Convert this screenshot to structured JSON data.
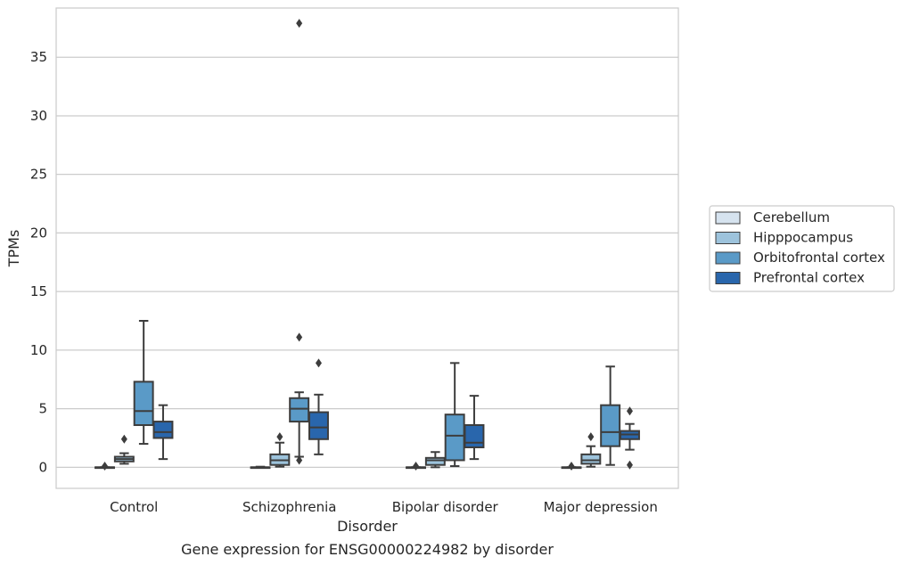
{
  "chart_data": {
    "type": "box",
    "title": "",
    "caption": "Gene expression for ENSG00000224982 by disorder",
    "xlabel": "Disorder",
    "ylabel": "TPMs",
    "ylim": [
      -1.8,
      39.2
    ],
    "yticks": [
      0,
      5,
      10,
      15,
      20,
      25,
      30,
      35
    ],
    "grid": "horizontal",
    "legend_position": "right",
    "categories": [
      "Control",
      "Schizophrenia",
      "Bipolar disorder",
      "Major depression"
    ],
    "series": [
      {
        "name": "Cerebellum",
        "color": "#d6e3ef",
        "boxes": [
          {
            "whisker_low": 0,
            "q1": 0,
            "median": 0,
            "q3": 0,
            "whisker_high": 0,
            "outliers": [
              0.1
            ]
          },
          {
            "whisker_low": 0,
            "q1": 0,
            "median": 0,
            "q3": 0,
            "whisker_high": 0.05,
            "outliers": []
          },
          {
            "whisker_low": 0,
            "q1": 0,
            "median": 0,
            "q3": 0,
            "whisker_high": 0,
            "outliers": [
              0.1
            ]
          },
          {
            "whisker_low": 0,
            "q1": 0,
            "median": 0,
            "q3": 0,
            "whisker_high": 0,
            "outliers": [
              0.1
            ]
          }
        ]
      },
      {
        "name": "Hipppocampus",
        "color": "#9dc3dc",
        "boxes": [
          {
            "whisker_low": 0.3,
            "q1": 0.5,
            "median": 0.7,
            "q3": 0.9,
            "whisker_high": 1.2,
            "outliers": [
              2.4
            ]
          },
          {
            "whisker_low": 0.05,
            "q1": 0.2,
            "median": 0.6,
            "q3": 1.1,
            "whisker_high": 2.1,
            "outliers": [
              2.6
            ]
          },
          {
            "whisker_low": 0,
            "q1": 0.2,
            "median": 0.6,
            "q3": 0.8,
            "whisker_high": 1.3,
            "outliers": []
          },
          {
            "whisker_low": 0.05,
            "q1": 0.3,
            "median": 0.6,
            "q3": 1.1,
            "whisker_high": 1.8,
            "outliers": [
              2.6
            ]
          }
        ]
      },
      {
        "name": "Orbitofrontal cortex",
        "color": "#5a9ac7",
        "boxes": [
          {
            "whisker_low": 2.0,
            "q1": 3.6,
            "median": 4.8,
            "q3": 7.3,
            "whisker_high": 12.5,
            "outliers": []
          },
          {
            "whisker_low": 0.9,
            "q1": 3.9,
            "median": 5.0,
            "q3": 5.9,
            "whisker_high": 6.4,
            "outliers": [
              11.1,
              0.6,
              37.9
            ]
          },
          {
            "whisker_low": 0.1,
            "q1": 0.6,
            "median": 2.7,
            "q3": 4.5,
            "whisker_high": 8.9,
            "outliers": []
          },
          {
            "whisker_low": 0.2,
            "q1": 1.8,
            "median": 3.0,
            "q3": 5.3,
            "whisker_high": 8.6,
            "outliers": []
          }
        ]
      },
      {
        "name": "Prefrontal cortex",
        "color": "#2966ac",
        "boxes": [
          {
            "whisker_low": 0.7,
            "q1": 2.5,
            "median": 3.0,
            "q3": 3.9,
            "whisker_high": 5.3,
            "outliers": []
          },
          {
            "whisker_low": 1.1,
            "q1": 2.4,
            "median": 3.4,
            "q3": 4.7,
            "whisker_high": 6.2,
            "outliers": [
              8.9
            ]
          },
          {
            "whisker_low": 0.7,
            "q1": 1.7,
            "median": 2.1,
            "q3": 3.6,
            "whisker_high": 6.1,
            "outliers": []
          },
          {
            "whisker_low": 1.5,
            "q1": 2.4,
            "median": 2.8,
            "q3": 3.1,
            "whisker_high": 3.7,
            "outliers": [
              4.8,
              0.2
            ]
          }
        ]
      }
    ]
  }
}
